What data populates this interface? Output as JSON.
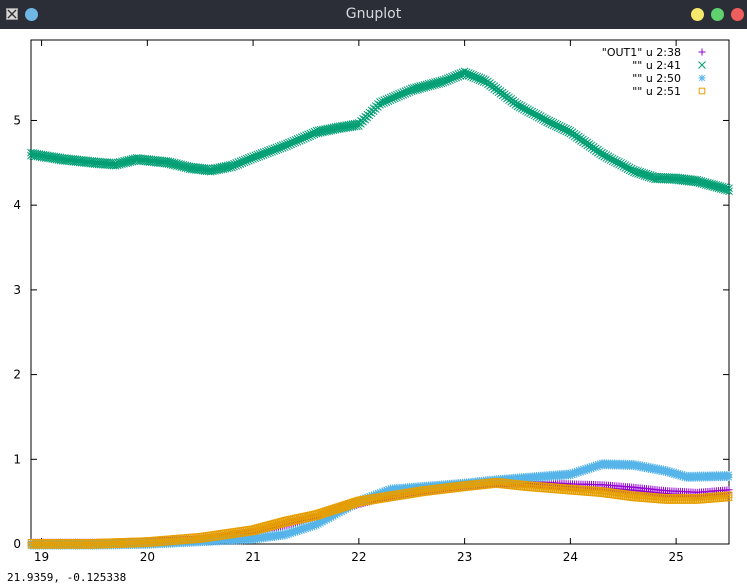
{
  "window": {
    "title": "Gnuplot"
  },
  "status_text": "21.9359, -0.125338",
  "chart_data": {
    "type": "scatter",
    "xlim": [
      18.9,
      25.5
    ],
    "ylim": [
      0,
      5.95
    ],
    "x_ticks": [
      "19",
      "20",
      "21",
      "22",
      "23",
      "24",
      "25"
    ],
    "y_ticks": [
      "0",
      "1",
      "2",
      "3",
      "4",
      "5"
    ],
    "grid": false,
    "legend_position": "top-right",
    "series": [
      {
        "name": "\"OUT1\" u 2:38",
        "marker": "plus",
        "color": "#9400d3",
        "points": [
          [
            18.9,
            0.02
          ],
          [
            19.5,
            0.02
          ],
          [
            20.0,
            0.03
          ],
          [
            20.5,
            0.06
          ],
          [
            21.0,
            0.15
          ],
          [
            21.3,
            0.25
          ],
          [
            21.6,
            0.33
          ],
          [
            22.0,
            0.5
          ],
          [
            22.3,
            0.6
          ],
          [
            22.6,
            0.66
          ],
          [
            23.0,
            0.72
          ],
          [
            23.3,
            0.75
          ],
          [
            23.6,
            0.74
          ],
          [
            24.0,
            0.71
          ],
          [
            24.3,
            0.7
          ],
          [
            24.6,
            0.67
          ],
          [
            24.9,
            0.63
          ],
          [
            25.2,
            0.61
          ],
          [
            25.5,
            0.64
          ]
        ]
      },
      {
        "name": "\"\" u 2:41",
        "marker": "cross",
        "color": "#009e73",
        "points": [
          [
            18.9,
            4.62
          ],
          [
            19.2,
            4.56
          ],
          [
            19.5,
            4.52
          ],
          [
            19.7,
            4.5
          ],
          [
            19.9,
            4.56
          ],
          [
            20.2,
            4.52
          ],
          [
            20.4,
            4.46
          ],
          [
            20.6,
            4.43
          ],
          [
            20.8,
            4.48
          ],
          [
            21.0,
            4.58
          ],
          [
            21.3,
            4.72
          ],
          [
            21.6,
            4.88
          ],
          [
            21.8,
            4.93
          ],
          [
            22.0,
            4.97
          ],
          [
            22.2,
            5.22
          ],
          [
            22.5,
            5.38
          ],
          [
            22.8,
            5.48
          ],
          [
            23.0,
            5.58
          ],
          [
            23.2,
            5.48
          ],
          [
            23.5,
            5.2
          ],
          [
            23.8,
            5.0
          ],
          [
            24.0,
            4.88
          ],
          [
            24.3,
            4.62
          ],
          [
            24.6,
            4.42
          ],
          [
            24.8,
            4.34
          ],
          [
            25.0,
            4.33
          ],
          [
            25.2,
            4.3
          ],
          [
            25.5,
            4.2
          ]
        ]
      },
      {
        "name": "\"\" u 2:50",
        "marker": "asterisk",
        "color": "#56b4e9",
        "points": [
          [
            18.9,
            0.01
          ],
          [
            19.5,
            0.01
          ],
          [
            20.0,
            0.02
          ],
          [
            20.5,
            0.05
          ],
          [
            21.0,
            0.08
          ],
          [
            21.3,
            0.13
          ],
          [
            21.6,
            0.25
          ],
          [
            22.0,
            0.52
          ],
          [
            22.3,
            0.66
          ],
          [
            22.6,
            0.69
          ],
          [
            23.0,
            0.73
          ],
          [
            23.3,
            0.77
          ],
          [
            23.6,
            0.8
          ],
          [
            24.0,
            0.84
          ],
          [
            24.3,
            0.96
          ],
          [
            24.6,
            0.95
          ],
          [
            24.9,
            0.88
          ],
          [
            25.1,
            0.81
          ],
          [
            25.5,
            0.82
          ]
        ]
      },
      {
        "name": "\"\" u 2:51",
        "marker": "square",
        "color": "#e69f00",
        "points": [
          [
            18.9,
            0.02
          ],
          [
            19.5,
            0.02
          ],
          [
            20.0,
            0.04
          ],
          [
            20.5,
            0.09
          ],
          [
            21.0,
            0.18
          ],
          [
            21.3,
            0.28
          ],
          [
            21.6,
            0.36
          ],
          [
            22.0,
            0.52
          ],
          [
            22.3,
            0.58
          ],
          [
            22.6,
            0.64
          ],
          [
            23.0,
            0.7
          ],
          [
            23.3,
            0.74
          ],
          [
            23.6,
            0.7
          ],
          [
            24.0,
            0.66
          ],
          [
            24.3,
            0.63
          ],
          [
            24.6,
            0.58
          ],
          [
            24.9,
            0.55
          ],
          [
            25.2,
            0.55
          ],
          [
            25.5,
            0.58
          ]
        ]
      }
    ]
  }
}
